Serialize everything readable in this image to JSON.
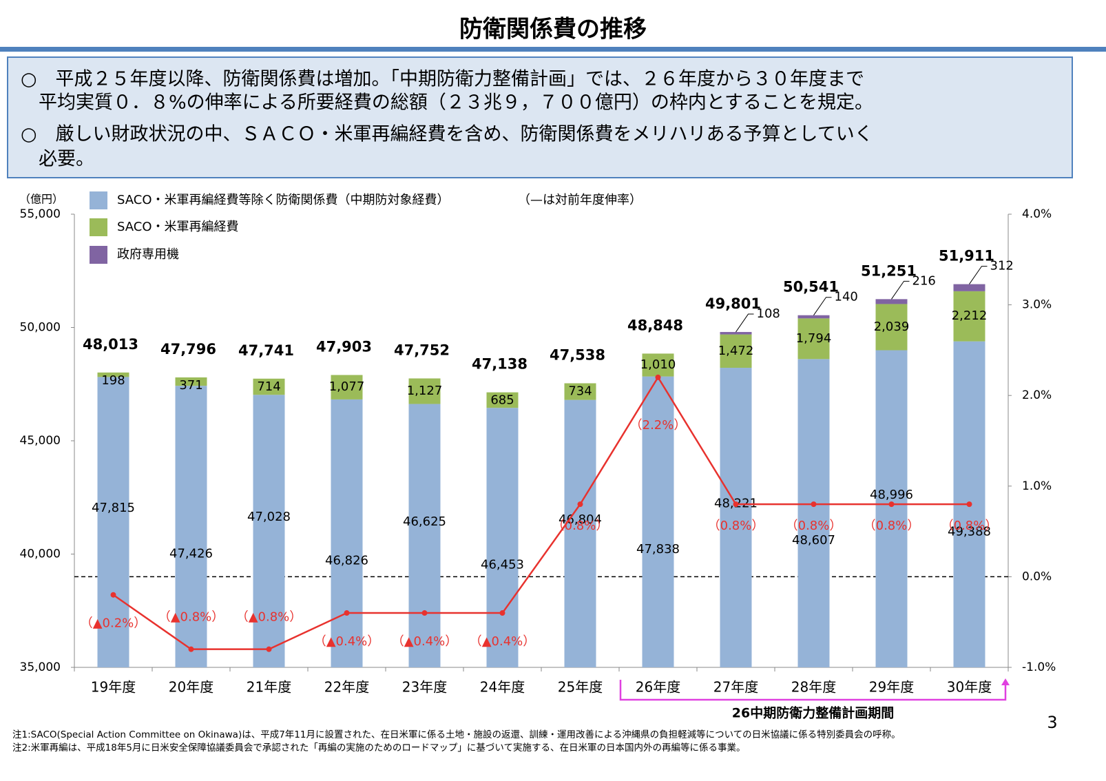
{
  "header": {
    "title": "防衛関係費の推移"
  },
  "summary": {
    "lines": [
      "○　平成２５年度以降、防衛関係費は増加。「中期防衛力整備計画」では、２６年度から３０年度まで",
      "平均実質０．８%の伸率による所要経費の総額（２３兆９，７００億円）の枠内とすることを規定。",
      "○　厳しい財政状況の中、ＳＡＣＯ・米軍再編経費を含め、防衛関係費をメリハリある予算としていく",
      "必要。"
    ]
  },
  "chart_data": {
    "type": "bar",
    "stacked": true,
    "y_unit": "（億円）",
    "categories": [
      "19年度",
      "20年度",
      "21年度",
      "22年度",
      "23年度",
      "24年度",
      "25年度",
      "26年度",
      "27年度",
      "28年度",
      "29年度",
      "30年度"
    ],
    "series": [
      {
        "name": "SACO・米軍再編経費等除く防衛関係費（中期防対象経費）",
        "color": "#95b3d7",
        "values": [
          47815,
          47426,
          47028,
          46826,
          46625,
          46453,
          46804,
          47838,
          48221,
          48607,
          48996,
          49388
        ],
        "value_labels": [
          "47,815",
          "47,426",
          "47,028",
          "46,826",
          "46,625",
          "46,453",
          "46,804",
          "47,838",
          "48,221",
          "48,607",
          "48,996",
          "49,388"
        ]
      },
      {
        "name": "SACO・米軍再編経費",
        "color": "#9bbb59",
        "values": [
          198,
          371,
          714,
          1077,
          1127,
          685,
          734,
          1010,
          1472,
          1794,
          2039,
          2212
        ],
        "value_labels": [
          "198",
          "371",
          "714",
          "1,077",
          "1,127",
          "685",
          "734",
          "1,010",
          "1,472",
          "1,794",
          "2,039",
          "2,212"
        ]
      },
      {
        "name": "政府専用機",
        "color": "#8064a2",
        "values": [
          null,
          null,
          null,
          null,
          null,
          null,
          null,
          null,
          108,
          140,
          216,
          312
        ]
      },
      {
        "name": "（—は対前年度伸率）",
        "type": "line",
        "axis": "y2",
        "color": "#e8322e",
        "values": [
          -0.2,
          -0.8,
          -0.8,
          -0.4,
          -0.4,
          -0.4,
          0.8,
          2.2,
          0.8,
          0.8,
          0.8,
          0.8
        ],
        "value_labels": [
          "（▲0.2%）",
          "（▲0.8%）",
          "（▲0.8%）",
          "（▲0.4%）",
          "（▲0.4%）",
          "（▲0.4%）",
          "（0.8%）",
          "（2.2%）",
          "（0.8%）",
          "（0.8%）",
          "（0.8%）",
          "（0.8%）"
        ]
      }
    ],
    "totals": [
      48013,
      47796,
      47741,
      47903,
      47752,
      47138,
      47538,
      48848,
      49801,
      50541,
      51251,
      51911
    ],
    "total_labels": [
      "48,013",
      "47,796",
      "47,741",
      "47,903",
      "47,752",
      "47,138",
      "47,538",
      "48,848",
      "49,801",
      "50,541",
      "51,251",
      "51,911"
    ],
    "ylim": [
      35000,
      55000
    ],
    "yticks": [
      {
        "value": 35000,
        "label": "35,000"
      },
      {
        "value": 40000,
        "label": "40,000"
      },
      {
        "value": 45000,
        "label": "45,000"
      },
      {
        "value": 50000,
        "label": "50,000"
      },
      {
        "value": 55000,
        "label": "55,000"
      }
    ],
    "y2lim": [
      -1,
      4
    ],
    "y2ticks": [
      {
        "value": -1,
        "label": "-1.0%"
      },
      {
        "value": 0,
        "label": "0.0%"
      },
      {
        "value": 1,
        "label": "1.0%"
      },
      {
        "value": 2,
        "label": "2.0%"
      },
      {
        "value": 3,
        "label": "3.0%"
      },
      {
        "value": 4,
        "label": "4.0%"
      }
    ],
    "zero_line": "dashed",
    "legend": "top-left",
    "annotations": [
      {
        "text": "26中期防衛力整備計画期間",
        "from": "26年度",
        "to": "30年度",
        "color": "#e040e0"
      }
    ]
  },
  "notes": [
    "注1:SACO(Special Action Committee on Okinawa)は、平成7年11月に設置された、在日米軍に係る土地・施設の返還、訓練・運用改善による沖縄県の負担軽減等についての日米協議に係る特別委員会の呼称。",
    "注2:米軍再編は、平成18年5月に日米安全保障協議委員会で承認された「再編の実施のためのロードマップ」に基づいて実施する、在日米軍の日本国内外の再編等に係る事業。"
  ],
  "page_number": "3"
}
